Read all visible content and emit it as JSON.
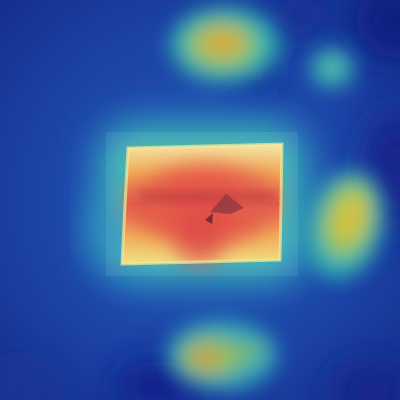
{
  "image": {
    "kind": "saliency heatmap overlay on photograph",
    "colormap": "jet",
    "colors": {
      "background_blue": "#1a3f9c",
      "deep_blue": "#0f1f8a",
      "mid_blue": "#2a62c8",
      "cyan": "#27b0c8",
      "green": "#5cc07a",
      "yellow": "#e6d84a",
      "orange": "#f0a040",
      "red": "#e0483a",
      "dark_red": "#b02a2e"
    },
    "hotspots": [
      {
        "name": "center-object",
        "intensity": 1.0
      },
      {
        "name": "top-blob",
        "intensity": 0.55
      },
      {
        "name": "right-blob",
        "intensity": 0.5
      },
      {
        "name": "bottom-blob",
        "intensity": 0.45
      },
      {
        "name": "top-right-dot",
        "intensity": 0.3
      }
    ]
  }
}
